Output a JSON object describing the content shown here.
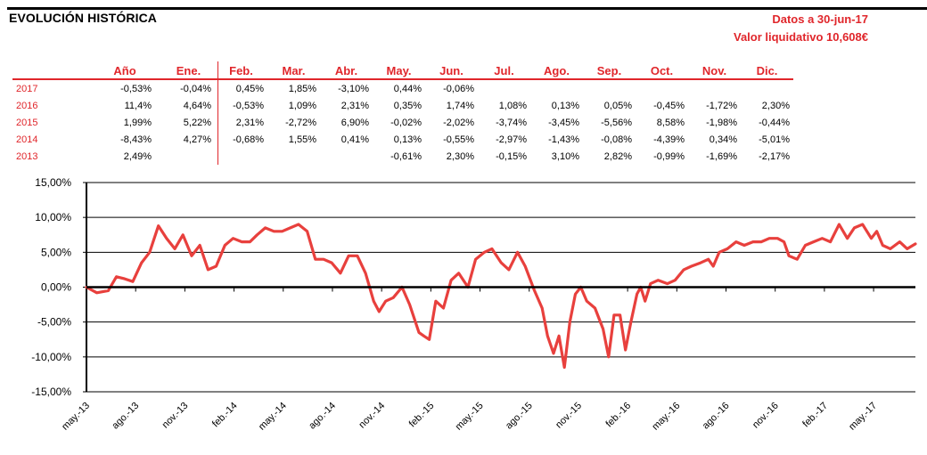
{
  "header": {
    "title": "EVOLUCIÓN HISTÓRICA",
    "date_label": "Datos a 30-jun-17",
    "nav_label": "Valor liquidativo 10,608€"
  },
  "table": {
    "headers": [
      "Año",
      "Ene.",
      "Feb.",
      "Mar.",
      "Abr.",
      "May.",
      "Jun.",
      "Jul.",
      "Ago.",
      "Sep.",
      "Oct.",
      "Nov.",
      "Dic."
    ],
    "rows": [
      {
        "year": "2017",
        "annual": "-0,53%",
        "months": [
          "-0,04%",
          "0,45%",
          "1,85%",
          "-3,10%",
          "0,44%",
          "-0,06%",
          "",
          "",
          "",
          "",
          "",
          ""
        ]
      },
      {
        "year": "2016",
        "annual": "11,4%",
        "months": [
          "4,64%",
          "-0,53%",
          "1,09%",
          "2,31%",
          "0,35%",
          "1,74%",
          "1,08%",
          "0,13%",
          "0,05%",
          "-0,45%",
          "-1,72%",
          "2,30%"
        ]
      },
      {
        "year": "2015",
        "annual": "1,99%",
        "months": [
          "5,22%",
          "2,31%",
          "-2,72%",
          "6,90%",
          "-0,02%",
          "-2,02%",
          "-3,74%",
          "-3,45%",
          "-5,56%",
          "8,58%",
          "-1,98%",
          "-0,44%"
        ]
      },
      {
        "year": "2014",
        "annual": "-8,43%",
        "months": [
          "4,27%",
          "-0,68%",
          "1,55%",
          "0,41%",
          "0,13%",
          "-0,55%",
          "-2,97%",
          "-1,43%",
          "-0,08%",
          "-4,39%",
          "0,34%",
          "-5,01%"
        ]
      },
      {
        "year": "2013",
        "annual": "2,49%",
        "months": [
          "",
          "",
          "",
          "",
          "-0,61%",
          "2,30%",
          "-0,15%",
          "3,10%",
          "2,82%",
          "-0,99%",
          "-1,69%",
          "-2,17%"
        ]
      }
    ]
  },
  "chart_data": {
    "type": "line",
    "series_color": "#e8403d",
    "ylim": [
      -15,
      15
    ],
    "y_ticks": [
      15,
      10,
      5,
      0,
      -5,
      -10,
      -15
    ],
    "y_tick_labels": [
      "15,00%",
      "10,00%",
      "5,00%",
      "0,00%",
      "-5,00%",
      "-10,00%",
      "-15,00%"
    ],
    "x_tick_labels": [
      "may.-13",
      "ago.-13",
      "nov.-13",
      "feb.-14",
      "may.-14",
      "ago.-14",
      "nov.-14",
      "feb.-15",
      "may.-15",
      "ago.-15",
      "nov.-15",
      "feb.-16",
      "may.-16",
      "ago.-16",
      "nov.-16",
      "feb.-17",
      "may.-17"
    ],
    "grid": true,
    "x": [
      "2013-05-01",
      "2013-05-20",
      "2013-06-10",
      "2013-06-25",
      "2013-07-10",
      "2013-07-25",
      "2013-08-10",
      "2013-08-25",
      "2013-09-10",
      "2013-09-25",
      "2013-10-10",
      "2013-10-25",
      "2013-11-10",
      "2013-11-25",
      "2013-12-10",
      "2013-12-25",
      "2014-01-10",
      "2014-01-25",
      "2014-02-10",
      "2014-02-25",
      "2014-03-10",
      "2014-03-25",
      "2014-04-10",
      "2014-04-25",
      "2014-05-10",
      "2014-05-25",
      "2014-06-10",
      "2014-06-25",
      "2014-07-10",
      "2014-07-25",
      "2014-08-10",
      "2014-08-25",
      "2014-09-10",
      "2014-09-25",
      "2014-10-10",
      "2014-10-20",
      "2014-11-01",
      "2014-11-15",
      "2014-12-01",
      "2014-12-15",
      "2015-01-01",
      "2015-01-10",
      "2015-01-20",
      "2015-02-01",
      "2015-02-15",
      "2015-03-01",
      "2015-03-15",
      "2015-04-01",
      "2015-04-15",
      "2015-05-01",
      "2015-05-15",
      "2015-06-01",
      "2015-06-15",
      "2015-07-01",
      "2015-07-15",
      "2015-08-01",
      "2015-08-15",
      "2015-08-25",
      "2015-09-05",
      "2015-09-15",
      "2015-09-25",
      "2015-10-05",
      "2015-10-15",
      "2015-10-25",
      "2015-11-05",
      "2015-11-20",
      "2015-12-05",
      "2015-12-15",
      "2015-12-25",
      "2016-01-05",
      "2016-01-15",
      "2016-01-25",
      "2016-02-05",
      "2016-02-12",
      "2016-02-20",
      "2016-03-01",
      "2016-03-15",
      "2016-04-01",
      "2016-04-15",
      "2016-05-01",
      "2016-05-15",
      "2016-06-01",
      "2016-06-15",
      "2016-06-24",
      "2016-07-05",
      "2016-07-20",
      "2016-08-05",
      "2016-08-20",
      "2016-09-05",
      "2016-09-20",
      "2016-10-05",
      "2016-10-20",
      "2016-11-01",
      "2016-11-10",
      "2016-11-25",
      "2016-12-10",
      "2016-12-25",
      "2017-01-10",
      "2017-01-25",
      "2017-02-10",
      "2017-02-25",
      "2017-03-10",
      "2017-03-25",
      "2017-04-10",
      "2017-04-20",
      "2017-05-01",
      "2017-05-15",
      "2017-06-01",
      "2017-06-15",
      "2017-06-30"
    ],
    "values": [
      0.0,
      -0.8,
      -0.5,
      1.5,
      1.2,
      0.8,
      3.5,
      5.0,
      8.8,
      7.0,
      5.5,
      7.5,
      4.5,
      6.0,
      2.5,
      3.0,
      6.0,
      7.0,
      6.5,
      6.5,
      7.5,
      8.5,
      8.0,
      8.0,
      8.5,
      9.0,
      8.0,
      4.0,
      4.0,
      3.5,
      2.0,
      4.5,
      4.5,
      2.0,
      -2.0,
      -3.5,
      -2.0,
      -1.5,
      0.0,
      -2.5,
      -6.5,
      -7.0,
      -7.5,
      -2.0,
      -3.0,
      1.0,
      2.0,
      0.0,
      4.0,
      5.0,
      5.5,
      3.5,
      2.5,
      5.0,
      3.0,
      -0.5,
      -3.0,
      -7.0,
      -9.5,
      -7.0,
      -11.5,
      -5.0,
      -1.0,
      0.0,
      -2.0,
      -3.0,
      -6.0,
      -10.0,
      -4.0,
      -4.0,
      -9.0,
      -5.0,
      -1.0,
      0.0,
      -2.0,
      0.5,
      1.0,
      0.5,
      1.0,
      2.5,
      3.0,
      3.5,
      4.0,
      3.0,
      5.0,
      5.5,
      6.5,
      6.0,
      6.5,
      6.5,
      7.0,
      7.0,
      6.5,
      4.5,
      4.0,
      6.0,
      6.5,
      7.0,
      6.5,
      9.0,
      7.0,
      8.5,
      9.0,
      7.0,
      8.0,
      6.0,
      5.5,
      6.5,
      5.5,
      6.2
    ]
  }
}
